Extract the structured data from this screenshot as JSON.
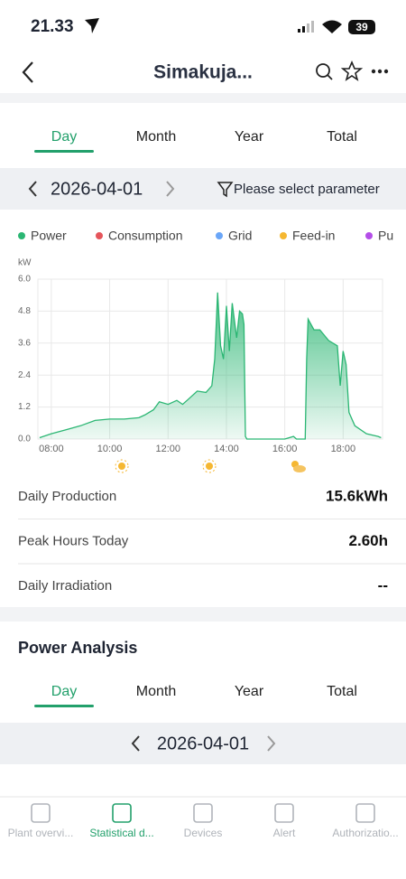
{
  "status_bar": {
    "time": "21.33",
    "battery": "39"
  },
  "header": {
    "title": "Simakuja..."
  },
  "tabs": [
    "Day",
    "Month",
    "Year",
    "Total"
  ],
  "date_selector": {
    "date": "2026-04-01",
    "filter": "Please select parameter"
  },
  "chart_data": {
    "type": "area",
    "y_label": "kW",
    "series": [
      {
        "name": "Power",
        "color": "#2bb673",
        "x": [
          7.6,
          8.0,
          8.5,
          9.0,
          9.5,
          10.0,
          10.5,
          11.0,
          11.2,
          11.5,
          11.7,
          12.0,
          12.3,
          12.5,
          12.7,
          13.0,
          13.3,
          13.5,
          13.6,
          13.7,
          13.8,
          13.9,
          14.0,
          14.1,
          14.2,
          14.35,
          14.45,
          14.55,
          14.6,
          14.65,
          14.7,
          16.0,
          16.3,
          16.4,
          16.7,
          16.75,
          16.8,
          17.0,
          17.2,
          17.5,
          17.8,
          17.9,
          18.0,
          18.1,
          18.2,
          18.4,
          18.8,
          19.2,
          19.3
        ],
        "values": [
          0.05,
          0.2,
          0.35,
          0.5,
          0.7,
          0.75,
          0.75,
          0.8,
          0.9,
          1.1,
          1.4,
          1.3,
          1.45,
          1.3,
          1.5,
          1.8,
          1.75,
          2.0,
          3.0,
          5.5,
          3.5,
          3.0,
          5.0,
          3.3,
          5.1,
          3.8,
          4.8,
          4.7,
          4.3,
          0.1,
          0.0,
          0.0,
          0.1,
          0.0,
          0.0,
          3.0,
          4.5,
          4.1,
          4.1,
          3.7,
          3.5,
          2.0,
          3.3,
          2.8,
          1.0,
          0.5,
          0.2,
          0.1,
          0.05
        ]
      },
      {
        "name": "Consumption",
        "color": "#e5555b"
      },
      {
        "name": "Grid",
        "color": "#6aa6f8"
      },
      {
        "name": "Feed-in",
        "color": "#f5b731"
      },
      {
        "name": "Pu",
        "color": "#b44ee8"
      }
    ],
    "xlim": [
      7.54,
      19.35
    ],
    "xticks": [
      {
        "value": 8,
        "label": "08:00"
      },
      {
        "value": 10,
        "label": "10:00"
      },
      {
        "value": 12,
        "label": "12:00"
      },
      {
        "value": 14,
        "label": "14:00"
      },
      {
        "value": 16,
        "label": "16:00"
      },
      {
        "value": 18,
        "label": "18:00"
      }
    ],
    "ylim": [
      0,
      6
    ],
    "yticks": [
      {
        "value": 0,
        "label": "0.0"
      },
      1.2,
      2.4,
      3.6,
      4.8,
      {
        "value": 6,
        "label": "6.0"
      }
    ],
    "grid": true
  },
  "stats": [
    {
      "label": "Daily Production",
      "value": "15.6kWh"
    },
    {
      "label": "Peak Hours Today",
      "value": "2.60h"
    },
    {
      "label": "Daily Irradiation",
      "value": "--"
    }
  ],
  "power_analysis": {
    "title": "Power Analysis",
    "tabs": [
      "Day",
      "Month",
      "Year",
      "Total"
    ],
    "date": "2026-04-01"
  },
  "bottom_nav": [
    "Plant overvi...",
    "Statistical d...",
    "Devices",
    "Alert",
    "Authorizatio..."
  ]
}
